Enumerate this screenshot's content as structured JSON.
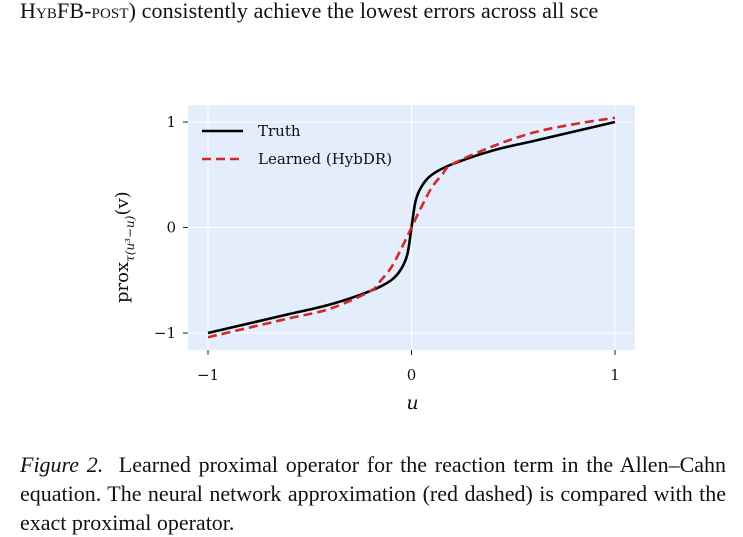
{
  "page": {
    "top_text": {
      "sc_prefix": "HybFB-post",
      "rest": ") consistently achieve the lowest errors across all sce"
    },
    "caption": {
      "label": "Figure 2.",
      "text": "Learned proximal operator for the reaction term in the Allen–Cahn equation. The neural network approximation (red dashed) is compared with the exact proximal operator.",
      "line1": "Learned proximal operator for the reaction term in",
      "line2": "the Allen–Cahn equation. The neural network approximation (red",
      "line3": "dashed) is compared with the exact proximal operator."
    }
  },
  "chart_data": {
    "type": "line",
    "title": "",
    "xlabel": "u",
    "ylabel_main": "prox",
    "ylabel_sub": "τ(u³−u)",
    "ylabel_arg": "(v)",
    "xlim": [
      -1.0,
      1.0
    ],
    "ylim": [
      -1.0,
      1.0
    ],
    "xticks": [
      -1,
      0,
      1
    ],
    "xtick_labels": [
      "−1",
      "0",
      "1"
    ],
    "yticks": [
      -1,
      0,
      1
    ],
    "ytick_labels": [
      "−1",
      "0",
      "1"
    ],
    "grid": true,
    "legend_position": "top-left",
    "colors": {
      "plot_bg": "#e3edfc",
      "truth": "#000000",
      "learned": "#d62728",
      "grid": "#ffffff"
    },
    "series": [
      {
        "name": "Truth",
        "style": "solid",
        "x": [
          -1.0,
          -0.8,
          -0.6,
          -0.4,
          -0.2,
          -0.1,
          -0.05,
          -0.02,
          0.0,
          0.02,
          0.05,
          0.1,
          0.2,
          0.4,
          0.6,
          0.8,
          1.0
        ],
        "y": [
          -1.0,
          -0.91,
          -0.82,
          -0.73,
          -0.6,
          -0.5,
          -0.39,
          -0.25,
          0.0,
          0.25,
          0.39,
          0.5,
          0.6,
          0.73,
          0.82,
          0.91,
          1.0
        ]
      },
      {
        "name": "Learned (HybDR)",
        "style": "dashed",
        "x": [
          -1.0,
          -0.8,
          -0.6,
          -0.4,
          -0.2,
          -0.15,
          -0.1,
          -0.05,
          0.0,
          0.05,
          0.1,
          0.15,
          0.2,
          0.4,
          0.6,
          0.8,
          1.0
        ],
        "y": [
          -1.04,
          -0.95,
          -0.86,
          -0.77,
          -0.6,
          -0.5,
          -0.38,
          -0.2,
          0.0,
          0.2,
          0.38,
          0.5,
          0.6,
          0.77,
          0.9,
          0.98,
          1.04
        ]
      }
    ]
  }
}
